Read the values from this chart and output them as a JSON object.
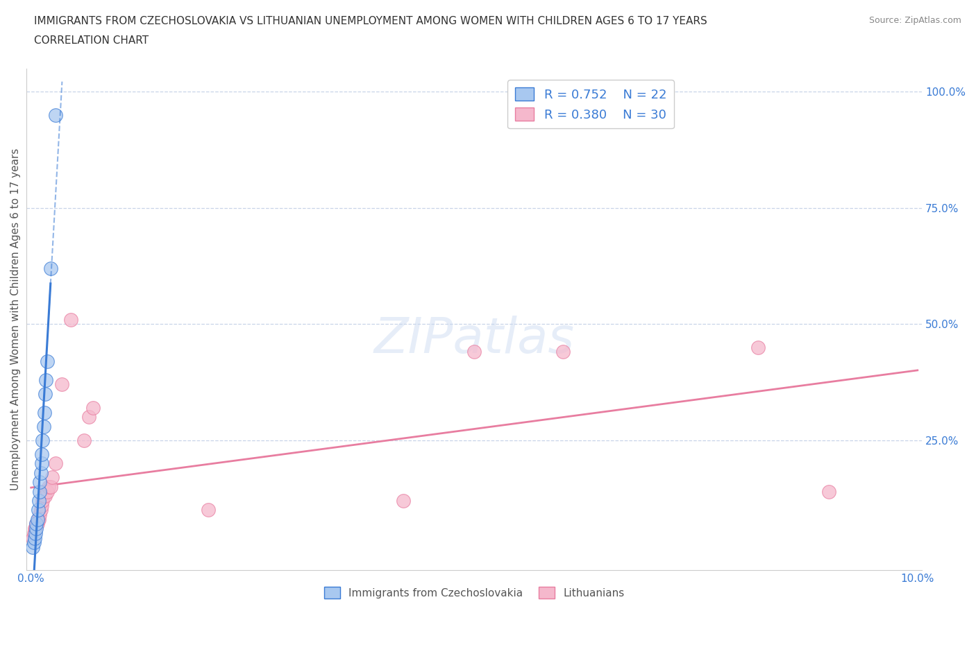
{
  "title_line1": "IMMIGRANTS FROM CZECHOSLOVAKIA VS LITHUANIAN UNEMPLOYMENT AMONG WOMEN WITH CHILDREN AGES 6 TO 17 YEARS",
  "title_line2": "CORRELATION CHART",
  "source": "Source: ZipAtlas.com",
  "ylabel": "Unemployment Among Women with Children Ages 6 to 17 years",
  "xlim": [
    0.0,
    0.1
  ],
  "ylim": [
    0.0,
    1.05
  ],
  "ytick_labels_right": [
    "100.0%",
    "75.0%",
    "50.0%",
    "25.0%"
  ],
  "ytick_positions_right": [
    1.0,
    0.75,
    0.5,
    0.25
  ],
  "blue_R": 0.752,
  "blue_N": 22,
  "pink_R": 0.38,
  "pink_N": 30,
  "blue_color": "#a8c8f0",
  "pink_color": "#f5b8cc",
  "blue_line_color": "#3a7bd5",
  "pink_line_color": "#e87da0",
  "blue_scatter": [
    [
      0.0002,
      0.02
    ],
    [
      0.0003,
      0.03
    ],
    [
      0.0004,
      0.04
    ],
    [
      0.0005,
      0.05
    ],
    [
      0.0006,
      0.06
    ],
    [
      0.0006,
      0.07
    ],
    [
      0.0007,
      0.08
    ],
    [
      0.0008,
      0.1
    ],
    [
      0.0009,
      0.12
    ],
    [
      0.001,
      0.14
    ],
    [
      0.001,
      0.16
    ],
    [
      0.0011,
      0.18
    ],
    [
      0.0012,
      0.2
    ],
    [
      0.0012,
      0.22
    ],
    [
      0.0013,
      0.25
    ],
    [
      0.0014,
      0.28
    ],
    [
      0.0015,
      0.31
    ],
    [
      0.0016,
      0.35
    ],
    [
      0.0017,
      0.38
    ],
    [
      0.0018,
      0.42
    ],
    [
      0.0022,
      0.62
    ],
    [
      0.0028,
      0.95
    ]
  ],
  "pink_scatter": [
    [
      0.0002,
      0.04
    ],
    [
      0.0003,
      0.05
    ],
    [
      0.0004,
      0.06
    ],
    [
      0.0005,
      0.06
    ],
    [
      0.0006,
      0.07
    ],
    [
      0.0007,
      0.07
    ],
    [
      0.0008,
      0.08
    ],
    [
      0.0009,
      0.08
    ],
    [
      0.001,
      0.09
    ],
    [
      0.0011,
      0.1
    ],
    [
      0.0012,
      0.11
    ],
    [
      0.0013,
      0.12
    ],
    [
      0.0014,
      0.13
    ],
    [
      0.0016,
      0.13
    ],
    [
      0.0018,
      0.14
    ],
    [
      0.002,
      0.15
    ],
    [
      0.0022,
      0.15
    ],
    [
      0.0024,
      0.17
    ],
    [
      0.0028,
      0.2
    ],
    [
      0.0035,
      0.37
    ],
    [
      0.0045,
      0.51
    ],
    [
      0.006,
      0.25
    ],
    [
      0.0065,
      0.3
    ],
    [
      0.007,
      0.32
    ],
    [
      0.02,
      0.1
    ],
    [
      0.042,
      0.12
    ],
    [
      0.05,
      0.44
    ],
    [
      0.06,
      0.44
    ],
    [
      0.082,
      0.45
    ],
    [
      0.09,
      0.14
    ]
  ],
  "watermark_text": "ZIPatlas",
  "grid_color": "#c8d4e8",
  "background_color": "#ffffff",
  "title_color": "#333333",
  "source_color": "#888888",
  "tick_color": "#3a7bd5",
  "ylabel_color": "#555555"
}
